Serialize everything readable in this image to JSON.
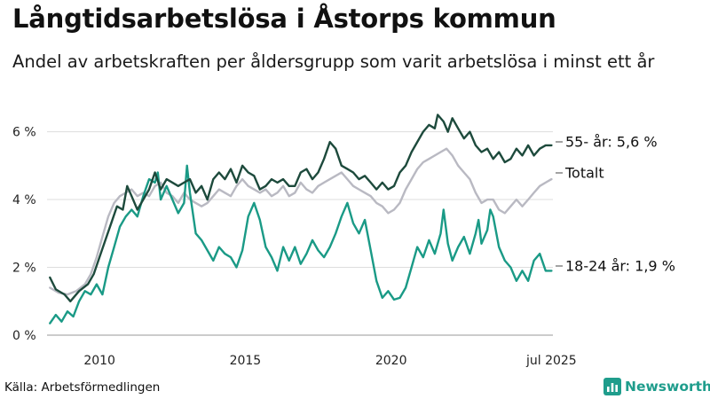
{
  "title": "Långtidsarbetslösa i Åstorps kommun",
  "subtitle": "Andel av arbetskraften per åldersgrupp som varit arbetslösa i minst ett år",
  "source": "Källa: Arbetsförmedlingen",
  "brand": {
    "name": "Newsworthy",
    "icon": "bar-chart-icon",
    "color": "#1f9d8c"
  },
  "chart_data": {
    "type": "line",
    "xlim": [
      2008.2,
      2025.55
    ],
    "ylim": [
      0,
      6.8
    ],
    "x_ticks": [
      2010,
      2015,
      2020,
      2025.5
    ],
    "x_tick_labels": [
      "2010",
      "2015",
      "2020",
      "jul 2025"
    ],
    "y_ticks": [
      0,
      2,
      4,
      6
    ],
    "y_tick_labels": [
      "0 %",
      "2 %",
      "4 %",
      "6 %"
    ],
    "grid": true,
    "series": [
      {
        "name": "55- år",
        "label": "55- år: 5,6 %",
        "color": "#1d4a3c",
        "points": [
          [
            2008.3,
            1.7
          ],
          [
            2008.5,
            1.35
          ],
          [
            2008.8,
            1.2
          ],
          [
            2009.0,
            1.0
          ],
          [
            2009.3,
            1.3
          ],
          [
            2009.6,
            1.5
          ],
          [
            2009.8,
            1.8
          ],
          [
            2010.0,
            2.3
          ],
          [
            2010.2,
            2.8
          ],
          [
            2010.4,
            3.3
          ],
          [
            2010.6,
            3.8
          ],
          [
            2010.8,
            3.7
          ],
          [
            2010.95,
            4.4
          ],
          [
            2011.1,
            4.1
          ],
          [
            2011.3,
            3.7
          ],
          [
            2011.5,
            4.0
          ],
          [
            2011.7,
            4.3
          ],
          [
            2011.9,
            4.8
          ],
          [
            2012.1,
            4.3
          ],
          [
            2012.3,
            4.6
          ],
          [
            2012.5,
            4.5
          ],
          [
            2012.7,
            4.4
          ],
          [
            2012.9,
            4.5
          ],
          [
            2013.1,
            4.6
          ],
          [
            2013.3,
            4.2
          ],
          [
            2013.5,
            4.4
          ],
          [
            2013.7,
            4.0
          ],
          [
            2013.9,
            4.6
          ],
          [
            2014.1,
            4.8
          ],
          [
            2014.3,
            4.6
          ],
          [
            2014.5,
            4.9
          ],
          [
            2014.7,
            4.5
          ],
          [
            2014.9,
            5.0
          ],
          [
            2015.1,
            4.8
          ],
          [
            2015.3,
            4.7
          ],
          [
            2015.5,
            4.3
          ],
          [
            2015.7,
            4.4
          ],
          [
            2015.9,
            4.6
          ],
          [
            2016.1,
            4.5
          ],
          [
            2016.3,
            4.6
          ],
          [
            2016.5,
            4.4
          ],
          [
            2016.7,
            4.4
          ],
          [
            2016.9,
            4.8
          ],
          [
            2017.1,
            4.9
          ],
          [
            2017.3,
            4.6
          ],
          [
            2017.5,
            4.8
          ],
          [
            2017.7,
            5.2
          ],
          [
            2017.9,
            5.7
          ],
          [
            2018.1,
            5.5
          ],
          [
            2018.3,
            5.0
          ],
          [
            2018.5,
            4.9
          ],
          [
            2018.7,
            4.8
          ],
          [
            2018.9,
            4.6
          ],
          [
            2019.1,
            4.7
          ],
          [
            2019.3,
            4.5
          ],
          [
            2019.5,
            4.3
          ],
          [
            2019.7,
            4.5
          ],
          [
            2019.9,
            4.3
          ],
          [
            2020.1,
            4.4
          ],
          [
            2020.3,
            4.8
          ],
          [
            2020.5,
            5.0
          ],
          [
            2020.7,
            5.4
          ],
          [
            2020.9,
            5.7
          ],
          [
            2021.1,
            6.0
          ],
          [
            2021.3,
            6.2
          ],
          [
            2021.5,
            6.1
          ],
          [
            2021.6,
            6.5
          ],
          [
            2021.8,
            6.3
          ],
          [
            2021.95,
            6.0
          ],
          [
            2022.1,
            6.4
          ],
          [
            2022.3,
            6.1
          ],
          [
            2022.5,
            5.8
          ],
          [
            2022.7,
            6.0
          ],
          [
            2022.9,
            5.6
          ],
          [
            2023.1,
            5.4
          ],
          [
            2023.3,
            5.5
          ],
          [
            2023.5,
            5.2
          ],
          [
            2023.7,
            5.4
          ],
          [
            2023.9,
            5.1
          ],
          [
            2024.1,
            5.2
          ],
          [
            2024.3,
            5.5
          ],
          [
            2024.5,
            5.3
          ],
          [
            2024.7,
            5.6
          ],
          [
            2024.9,
            5.3
          ],
          [
            2025.1,
            5.5
          ],
          [
            2025.3,
            5.6
          ],
          [
            2025.5,
            5.6
          ]
        ]
      },
      {
        "name": "Totalt",
        "label": "Totalt",
        "color": "#b9b9c2",
        "points": [
          [
            2008.3,
            1.4
          ],
          [
            2008.6,
            1.25
          ],
          [
            2008.9,
            1.2
          ],
          [
            2009.2,
            1.3
          ],
          [
            2009.5,
            1.5
          ],
          [
            2009.7,
            1.8
          ],
          [
            2009.9,
            2.3
          ],
          [
            2010.1,
            2.9
          ],
          [
            2010.3,
            3.5
          ],
          [
            2010.5,
            3.9
          ],
          [
            2010.7,
            4.1
          ],
          [
            2010.9,
            4.2
          ],
          [
            2011.1,
            4.3
          ],
          [
            2011.3,
            4.1
          ],
          [
            2011.5,
            4.2
          ],
          [
            2011.7,
            4.1
          ],
          [
            2011.9,
            4.4
          ],
          [
            2012.1,
            4.5
          ],
          [
            2012.3,
            4.2
          ],
          [
            2012.5,
            4.1
          ],
          [
            2012.7,
            3.9
          ],
          [
            2012.9,
            4.2
          ],
          [
            2013.1,
            4.0
          ],
          [
            2013.3,
            3.9
          ],
          [
            2013.5,
            3.8
          ],
          [
            2013.7,
            3.9
          ],
          [
            2013.9,
            4.1
          ],
          [
            2014.1,
            4.3
          ],
          [
            2014.3,
            4.2
          ],
          [
            2014.5,
            4.1
          ],
          [
            2014.7,
            4.4
          ],
          [
            2014.9,
            4.6
          ],
          [
            2015.1,
            4.4
          ],
          [
            2015.3,
            4.3
          ],
          [
            2015.5,
            4.2
          ],
          [
            2015.7,
            4.3
          ],
          [
            2015.9,
            4.1
          ],
          [
            2016.1,
            4.2
          ],
          [
            2016.3,
            4.4
          ],
          [
            2016.5,
            4.1
          ],
          [
            2016.7,
            4.2
          ],
          [
            2016.9,
            4.5
          ],
          [
            2017.1,
            4.3
          ],
          [
            2017.3,
            4.2
          ],
          [
            2017.5,
            4.4
          ],
          [
            2017.7,
            4.5
          ],
          [
            2017.9,
            4.6
          ],
          [
            2018.1,
            4.7
          ],
          [
            2018.3,
            4.8
          ],
          [
            2018.5,
            4.6
          ],
          [
            2018.7,
            4.4
          ],
          [
            2018.9,
            4.3
          ],
          [
            2019.1,
            4.2
          ],
          [
            2019.3,
            4.1
          ],
          [
            2019.5,
            3.9
          ],
          [
            2019.7,
            3.8
          ],
          [
            2019.9,
            3.6
          ],
          [
            2020.1,
            3.7
          ],
          [
            2020.3,
            3.9
          ],
          [
            2020.5,
            4.3
          ],
          [
            2020.7,
            4.6
          ],
          [
            2020.9,
            4.9
          ],
          [
            2021.1,
            5.1
          ],
          [
            2021.3,
            5.2
          ],
          [
            2021.5,
            5.3
          ],
          [
            2021.7,
            5.4
          ],
          [
            2021.9,
            5.5
          ],
          [
            2022.1,
            5.3
          ],
          [
            2022.3,
            5.0
          ],
          [
            2022.5,
            4.8
          ],
          [
            2022.7,
            4.6
          ],
          [
            2022.9,
            4.2
          ],
          [
            2023.1,
            3.9
          ],
          [
            2023.3,
            4.0
          ],
          [
            2023.5,
            4.0
          ],
          [
            2023.7,
            3.7
          ],
          [
            2023.9,
            3.6
          ],
          [
            2024.1,
            3.8
          ],
          [
            2024.3,
            4.0
          ],
          [
            2024.5,
            3.8
          ],
          [
            2024.7,
            4.0
          ],
          [
            2024.9,
            4.2
          ],
          [
            2025.1,
            4.4
          ],
          [
            2025.3,
            4.5
          ],
          [
            2025.5,
            4.6
          ]
        ]
      },
      {
        "name": "18-24 år",
        "label": "18-24 år: 1,9 %",
        "color": "#1a9a86",
        "points": [
          [
            2008.3,
            0.35
          ],
          [
            2008.5,
            0.6
          ],
          [
            2008.7,
            0.4
          ],
          [
            2008.9,
            0.7
          ],
          [
            2009.1,
            0.55
          ],
          [
            2009.3,
            1.0
          ],
          [
            2009.5,
            1.3
          ],
          [
            2009.7,
            1.2
          ],
          [
            2009.9,
            1.5
          ],
          [
            2010.1,
            1.2
          ],
          [
            2010.3,
            2.0
          ],
          [
            2010.5,
            2.6
          ],
          [
            2010.7,
            3.2
          ],
          [
            2010.9,
            3.5
          ],
          [
            2011.1,
            3.7
          ],
          [
            2011.3,
            3.5
          ],
          [
            2011.5,
            4.1
          ],
          [
            2011.7,
            4.6
          ],
          [
            2011.9,
            4.5
          ],
          [
            2012.0,
            4.8
          ],
          [
            2012.1,
            4.0
          ],
          [
            2012.3,
            4.4
          ],
          [
            2012.5,
            4.0
          ],
          [
            2012.7,
            3.6
          ],
          [
            2012.9,
            3.9
          ],
          [
            2013.0,
            5.0
          ],
          [
            2013.1,
            4.2
          ],
          [
            2013.3,
            3.0
          ],
          [
            2013.5,
            2.8
          ],
          [
            2013.7,
            2.5
          ],
          [
            2013.9,
            2.2
          ],
          [
            2014.1,
            2.6
          ],
          [
            2014.3,
            2.4
          ],
          [
            2014.5,
            2.3
          ],
          [
            2014.7,
            2.0
          ],
          [
            2014.9,
            2.5
          ],
          [
            2015.1,
            3.5
          ],
          [
            2015.3,
            3.9
          ],
          [
            2015.5,
            3.4
          ],
          [
            2015.7,
            2.6
          ],
          [
            2015.9,
            2.3
          ],
          [
            2016.1,
            1.9
          ],
          [
            2016.3,
            2.6
          ],
          [
            2016.5,
            2.2
          ],
          [
            2016.7,
            2.6
          ],
          [
            2016.9,
            2.1
          ],
          [
            2017.1,
            2.4
          ],
          [
            2017.3,
            2.8
          ],
          [
            2017.5,
            2.5
          ],
          [
            2017.7,
            2.3
          ],
          [
            2017.9,
            2.6
          ],
          [
            2018.1,
            3.0
          ],
          [
            2018.3,
            3.5
          ],
          [
            2018.5,
            3.9
          ],
          [
            2018.7,
            3.3
          ],
          [
            2018.9,
            3.0
          ],
          [
            2019.1,
            3.4
          ],
          [
            2019.3,
            2.5
          ],
          [
            2019.5,
            1.6
          ],
          [
            2019.7,
            1.1
          ],
          [
            2019.9,
            1.3
          ],
          [
            2020.1,
            1.05
          ],
          [
            2020.3,
            1.1
          ],
          [
            2020.5,
            1.4
          ],
          [
            2020.7,
            2.0
          ],
          [
            2020.9,
            2.6
          ],
          [
            2021.1,
            2.3
          ],
          [
            2021.3,
            2.8
          ],
          [
            2021.5,
            2.4
          ],
          [
            2021.7,
            3.0
          ],
          [
            2021.8,
            3.7
          ],
          [
            2021.95,
            2.7
          ],
          [
            2022.1,
            2.2
          ],
          [
            2022.3,
            2.6
          ],
          [
            2022.5,
            2.9
          ],
          [
            2022.7,
            2.4
          ],
          [
            2022.9,
            3.0
          ],
          [
            2023.0,
            3.4
          ],
          [
            2023.1,
            2.7
          ],
          [
            2023.3,
            3.1
          ],
          [
            2023.4,
            3.7
          ],
          [
            2023.5,
            3.5
          ],
          [
            2023.7,
            2.6
          ],
          [
            2023.9,
            2.2
          ],
          [
            2024.1,
            2.0
          ],
          [
            2024.3,
            1.6
          ],
          [
            2024.5,
            1.9
          ],
          [
            2024.7,
            1.6
          ],
          [
            2024.9,
            2.2
          ],
          [
            2025.1,
            2.4
          ],
          [
            2025.3,
            1.9
          ],
          [
            2025.5,
            1.9
          ]
        ]
      }
    ]
  }
}
